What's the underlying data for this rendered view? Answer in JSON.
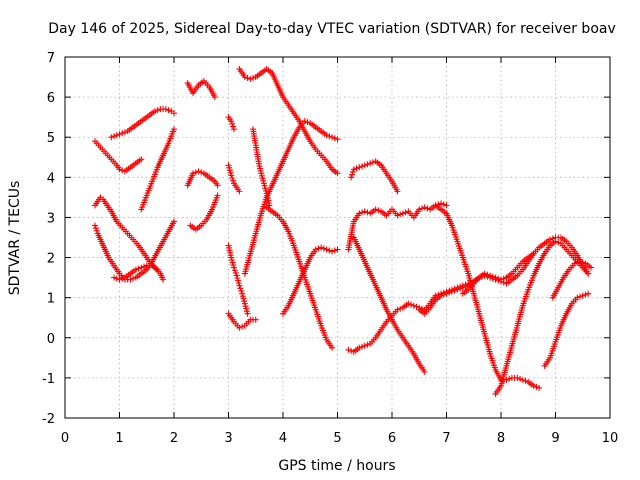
{
  "chart_data": {
    "type": "scatter",
    "title": "Day 146 of 2025, Sidereal Day-to-day VTEC variation (SDTVAR) for receiver boav",
    "xlabel": "GPS time / hours",
    "ylabel": "SDTVAR / TECUs",
    "xlim": [
      0,
      10
    ],
    "ylim": [
      -2,
      7
    ],
    "x_ticks": [
      "0",
      "1",
      "2",
      "3",
      "4",
      "5",
      "6",
      "7",
      "8",
      "9",
      "10"
    ],
    "y_ticks": [
      "-2",
      "-1",
      "0",
      "1",
      "2",
      "3",
      "4",
      "5",
      "6",
      "7"
    ],
    "grid": true,
    "legend": "none",
    "marker": "plus",
    "color": "#ff0000",
    "series": [
      {
        "x": [
          0.55,
          0.65,
          0.75,
          0.85,
          0.95,
          1.0,
          1.1,
          1.2,
          1.3,
          1.4
        ],
        "y": [
          4.9,
          4.75,
          4.6,
          4.45,
          4.3,
          4.2,
          4.15,
          4.25,
          4.35,
          4.45
        ]
      },
      {
        "x": [
          0.85,
          0.95,
          1.05,
          1.15,
          1.25,
          1.35,
          1.45,
          1.55,
          1.65,
          1.75,
          1.85,
          1.95,
          2.0
        ],
        "y": [
          5.0,
          5.05,
          5.1,
          5.15,
          5.25,
          5.35,
          5.45,
          5.55,
          5.65,
          5.7,
          5.7,
          5.65,
          5.6
        ]
      },
      {
        "x": [
          0.55,
          0.6,
          0.65,
          0.7,
          0.75,
          0.85,
          0.95,
          1.05,
          1.15,
          1.25,
          1.35,
          1.45,
          1.55,
          1.65,
          1.75,
          1.8
        ],
        "y": [
          3.3,
          3.4,
          3.5,
          3.45,
          3.35,
          3.15,
          2.9,
          2.75,
          2.6,
          2.45,
          2.3,
          2.1,
          1.9,
          1.75,
          1.6,
          1.45
        ]
      },
      {
        "x": [
          0.55,
          0.6,
          0.7,
          0.8,
          0.9,
          1.0,
          1.1,
          1.2,
          1.3,
          1.4,
          1.5,
          1.6,
          1.7,
          1.8,
          1.9,
          2.0
        ],
        "y": [
          2.8,
          2.6,
          2.3,
          2.0,
          1.8,
          1.6,
          1.45,
          1.45,
          1.5,
          1.6,
          1.7,
          1.9,
          2.15,
          2.4,
          2.65,
          2.9
        ]
      },
      {
        "x": [
          0.9,
          1.0,
          1.1,
          1.2,
          1.3,
          1.4,
          1.5,
          1.6,
          1.7
        ],
        "y": [
          1.5,
          1.45,
          1.5,
          1.6,
          1.7,
          1.75,
          1.8,
          1.8,
          1.7
        ]
      },
      {
        "x": [
          1.4,
          1.5,
          1.6,
          1.7,
          1.8,
          1.9,
          2.0
        ],
        "y": [
          3.2,
          3.55,
          3.9,
          4.25,
          4.55,
          4.85,
          5.2
        ]
      },
      {
        "x": [
          2.25,
          2.35,
          2.45,
          2.55,
          2.65,
          2.75
        ],
        "y": [
          6.35,
          6.1,
          6.3,
          6.4,
          6.25,
          6.0
        ]
      },
      {
        "x": [
          2.25,
          2.35,
          2.45,
          2.55,
          2.65,
          2.75,
          2.8
        ],
        "y": [
          3.8,
          4.1,
          4.15,
          4.1,
          4.0,
          3.9,
          3.8
        ]
      },
      {
        "x": [
          2.3,
          2.4,
          2.5,
          2.6,
          2.7,
          2.8
        ],
        "y": [
          2.8,
          2.7,
          2.8,
          2.95,
          3.2,
          3.55
        ]
      },
      {
        "x": [
          3.0,
          3.05,
          3.1
        ],
        "y": [
          5.5,
          5.4,
          5.2
        ]
      },
      {
        "x": [
          3.0,
          3.05,
          3.1,
          3.15,
          3.2
        ],
        "y": [
          4.3,
          4.05,
          3.85,
          3.75,
          3.65
        ]
      },
      {
        "x": [
          3.0,
          3.05,
          3.1,
          3.15,
          3.2,
          3.25,
          3.3,
          3.35
        ],
        "y": [
          2.3,
          2.0,
          1.75,
          1.55,
          1.3,
          1.1,
          0.85,
          0.6
        ]
      },
      {
        "x": [
          3.0,
          3.1,
          3.2,
          3.3,
          3.4,
          3.5
        ],
        "y": [
          0.6,
          0.4,
          0.25,
          0.3,
          0.45,
          0.45
        ]
      },
      {
        "x": [
          3.2,
          3.3,
          3.4,
          3.5,
          3.6,
          3.7,
          3.8,
          3.9,
          4.0,
          4.1,
          4.2,
          4.3,
          4.4,
          4.5,
          4.6,
          4.7,
          4.8,
          4.9,
          5.0
        ],
        "y": [
          6.7,
          6.5,
          6.45,
          6.5,
          6.6,
          6.7,
          6.6,
          6.3,
          6.0,
          5.8,
          5.6,
          5.4,
          5.15,
          4.9,
          4.7,
          4.55,
          4.4,
          4.2,
          4.1
        ]
      },
      {
        "x": [
          3.45,
          3.5,
          3.55,
          3.6,
          3.65,
          3.7,
          3.75
        ],
        "y": [
          5.2,
          4.8,
          4.4,
          4.1,
          3.85,
          3.6,
          3.3
        ]
      },
      {
        "x": [
          3.3,
          3.4,
          3.5,
          3.6,
          3.7,
          3.8,
          3.9,
          4.0,
          4.1,
          4.2,
          4.3,
          4.4,
          4.5,
          4.6,
          4.7,
          4.8,
          4.9,
          5.0
        ],
        "y": [
          1.6,
          2.1,
          2.6,
          3.1,
          3.5,
          3.8,
          4.1,
          4.4,
          4.7,
          5.0,
          5.25,
          5.4,
          5.35,
          5.25,
          5.15,
          5.05,
          5.0,
          4.95
        ]
      },
      {
        "x": [
          3.7,
          3.8,
          3.9,
          4.0,
          4.1,
          4.2,
          4.3,
          4.4,
          4.5,
          4.6,
          4.7,
          4.8,
          4.9
        ],
        "y": [
          3.25,
          3.15,
          3.05,
          2.9,
          2.65,
          2.3,
          1.9,
          1.5,
          1.1,
          0.7,
          0.3,
          -0.05,
          -0.25
        ]
      },
      {
        "x": [
          4.0,
          4.1,
          4.2,
          4.3,
          4.4,
          4.5,
          4.6,
          4.7,
          4.8,
          4.9,
          5.0
        ],
        "y": [
          0.6,
          0.8,
          1.1,
          1.4,
          1.7,
          2.0,
          2.2,
          2.25,
          2.2,
          2.15,
          2.2
        ]
      },
      {
        "x": [
          5.25,
          5.3,
          5.4,
          5.5,
          5.6,
          5.7,
          5.8,
          5.9,
          6.0,
          6.1
        ],
        "y": [
          4.0,
          4.2,
          4.25,
          4.3,
          4.35,
          4.4,
          4.3,
          4.1,
          3.9,
          3.65
        ]
      },
      {
        "x": [
          5.2,
          5.3,
          5.4,
          5.5,
          5.6,
          5.7,
          5.8,
          5.9,
          6.0,
          6.1,
          6.2,
          6.3,
          6.4,
          6.5,
          6.6,
          6.7,
          6.8,
          6.9,
          7.0
        ],
        "y": [
          2.2,
          2.9,
          3.1,
          3.15,
          3.1,
          3.2,
          3.15,
          3.05,
          3.2,
          3.05,
          3.1,
          3.15,
          3.0,
          3.2,
          3.25,
          3.2,
          3.3,
          3.35,
          3.3
        ]
      },
      {
        "x": [
          5.3,
          5.4,
          5.5,
          5.6,
          5.7,
          5.8,
          5.9,
          6.0,
          6.1,
          6.2,
          6.3,
          6.4,
          6.5,
          6.6
        ],
        "y": [
          2.5,
          2.2,
          1.9,
          1.6,
          1.3,
          1.0,
          0.7,
          0.45,
          0.2,
          0.0,
          -0.2,
          -0.4,
          -0.65,
          -0.85
        ]
      },
      {
        "x": [
          5.2,
          5.3,
          5.4,
          5.5,
          5.6,
          5.7,
          5.8,
          5.9,
          6.0,
          6.1,
          6.2,
          6.3,
          6.4,
          6.5,
          6.6,
          6.7,
          6.8,
          6.9,
          7.0,
          7.1,
          7.2,
          7.3,
          7.4,
          7.5,
          7.6,
          7.7
        ],
        "y": [
          -0.3,
          -0.35,
          -0.25,
          -0.2,
          -0.15,
          0.0,
          0.2,
          0.4,
          0.55,
          0.7,
          0.75,
          0.85,
          0.8,
          0.75,
          0.7,
          0.85,
          1.05,
          1.1,
          1.15,
          1.2,
          1.25,
          1.3,
          1.35,
          1.4,
          1.5,
          1.55
        ]
      },
      {
        "x": [
          6.5,
          6.6,
          6.7,
          6.8,
          6.9,
          7.0,
          7.1,
          7.2,
          7.3,
          7.4,
          7.5,
          7.6,
          7.7,
          7.8,
          7.9,
          8.0,
          8.1,
          8.2,
          8.3,
          8.4,
          8.5,
          8.6,
          8.7,
          8.8,
          8.9,
          9.0,
          9.1,
          9.2,
          9.3,
          9.4,
          9.5,
          9.6
        ],
        "y": [
          0.7,
          0.6,
          0.75,
          0.95,
          1.05,
          1.1,
          1.15,
          1.2,
          1.25,
          1.3,
          1.4,
          1.5,
          1.55,
          1.5,
          1.45,
          1.4,
          1.35,
          1.45,
          1.55,
          1.7,
          1.9,
          2.1,
          2.25,
          2.35,
          2.45,
          2.5,
          2.5,
          2.4,
          2.25,
          2.05,
          1.8,
          1.6
        ]
      },
      {
        "x": [
          6.8,
          6.9,
          7.0,
          7.1,
          7.2,
          7.3,
          7.4,
          7.5,
          7.6,
          7.7,
          7.8,
          7.9,
          8.0,
          8.1,
          8.2,
          8.3,
          8.4,
          8.5,
          8.6,
          8.7
        ],
        "y": [
          3.3,
          3.2,
          3.1,
          2.8,
          2.4,
          2.0,
          1.6,
          1.1,
          0.6,
          0.1,
          -0.4,
          -0.8,
          -1.05,
          -1.05,
          -1.0,
          -1.0,
          -1.05,
          -1.1,
          -1.2,
          -1.25
        ]
      },
      {
        "x": [
          7.3,
          7.4,
          7.5,
          7.6,
          7.7,
          7.8,
          7.9,
          8.0,
          8.1,
          8.2,
          8.3,
          8.4,
          8.5,
          8.6
        ],
        "y": [
          1.1,
          1.2,
          1.35,
          1.5,
          1.6,
          1.55,
          1.5,
          1.45,
          1.5,
          1.6,
          1.75,
          1.9,
          2.0,
          2.1
        ]
      },
      {
        "x": [
          7.9,
          8.0,
          8.1,
          8.2,
          8.3,
          8.4,
          8.5,
          8.6,
          8.7,
          8.8,
          8.9,
          9.0,
          9.1,
          9.2,
          9.3,
          9.4,
          9.5,
          9.6
        ],
        "y": [
          -1.4,
          -1.2,
          -0.7,
          -0.2,
          0.3,
          0.8,
          1.2,
          1.55,
          1.85,
          2.1,
          2.3,
          2.4,
          2.35,
          2.2,
          2.05,
          1.9,
          1.75,
          1.6
        ]
      },
      {
        "x": [
          8.8,
          8.9,
          9.0,
          9.1,
          9.2,
          9.3,
          9.4,
          9.5,
          9.6
        ],
        "y": [
          -0.7,
          -0.5,
          -0.1,
          0.3,
          0.6,
          0.85,
          1.0,
          1.05,
          1.1
        ]
      },
      {
        "x": [
          8.95,
          9.05,
          9.15,
          9.25,
          9.35,
          9.45,
          9.55,
          9.65
        ],
        "y": [
          1.0,
          1.25,
          1.5,
          1.7,
          1.85,
          1.9,
          1.85,
          1.75
        ]
      }
    ]
  }
}
